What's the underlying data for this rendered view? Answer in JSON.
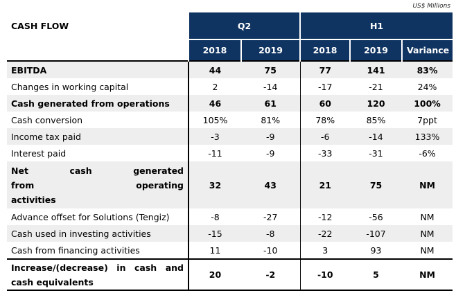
{
  "units": "US$ Millions",
  "title": "CASH FLOW",
  "groups": {
    "q2": "Q2",
    "h1": "H1"
  },
  "years": {
    "q2_2018": "2018",
    "q2_2019": "2019",
    "h1_2018": "2018",
    "h1_2019": "2019",
    "variance": "Variance"
  },
  "rows": [
    {
      "label": "EBITDA",
      "values": [
        "44",
        "75",
        "77",
        "141",
        "83%"
      ]
    },
    {
      "label": "Changes in working capital",
      "values": [
        "2",
        "-14",
        "-17",
        "-21",
        "24%"
      ]
    },
    {
      "label": "Cash generated from operations",
      "values": [
        "46",
        "61",
        "60",
        "120",
        "100%"
      ]
    },
    {
      "label": "Cash conversion",
      "values": [
        "105%",
        "81%",
        "78%",
        "85%",
        "7ppt"
      ]
    },
    {
      "label": "Income tax paid",
      "values": [
        "-3",
        "-9",
        "-6",
        "-14",
        "133%"
      ]
    },
    {
      "label": "Interest paid",
      "values": [
        "-11",
        "-9",
        "-33",
        "-31",
        "-6%"
      ]
    },
    {
      "label_lines": [
        "Net cash generated",
        "from operating",
        "activities"
      ],
      "values": [
        "32",
        "43",
        "21",
        "75",
        "NM"
      ]
    },
    {
      "label": "Advance offset for Solutions (Tengiz)",
      "values": [
        "-8",
        "-27",
        "-12",
        "-56",
        "NM"
      ]
    },
    {
      "label": "Cash used in investing activities",
      "values": [
        "-15",
        "-8",
        "-22",
        "-107",
        "NM"
      ]
    },
    {
      "label": "Cash from financing activities",
      "values": [
        "11",
        "-10",
        "3",
        "93",
        "NM"
      ]
    },
    {
      "label_lines": [
        "Increase/(decrease) in cash and",
        "cash equivalents"
      ],
      "values": [
        "20",
        "-2",
        "-10",
        "5",
        "NM"
      ]
    }
  ]
}
